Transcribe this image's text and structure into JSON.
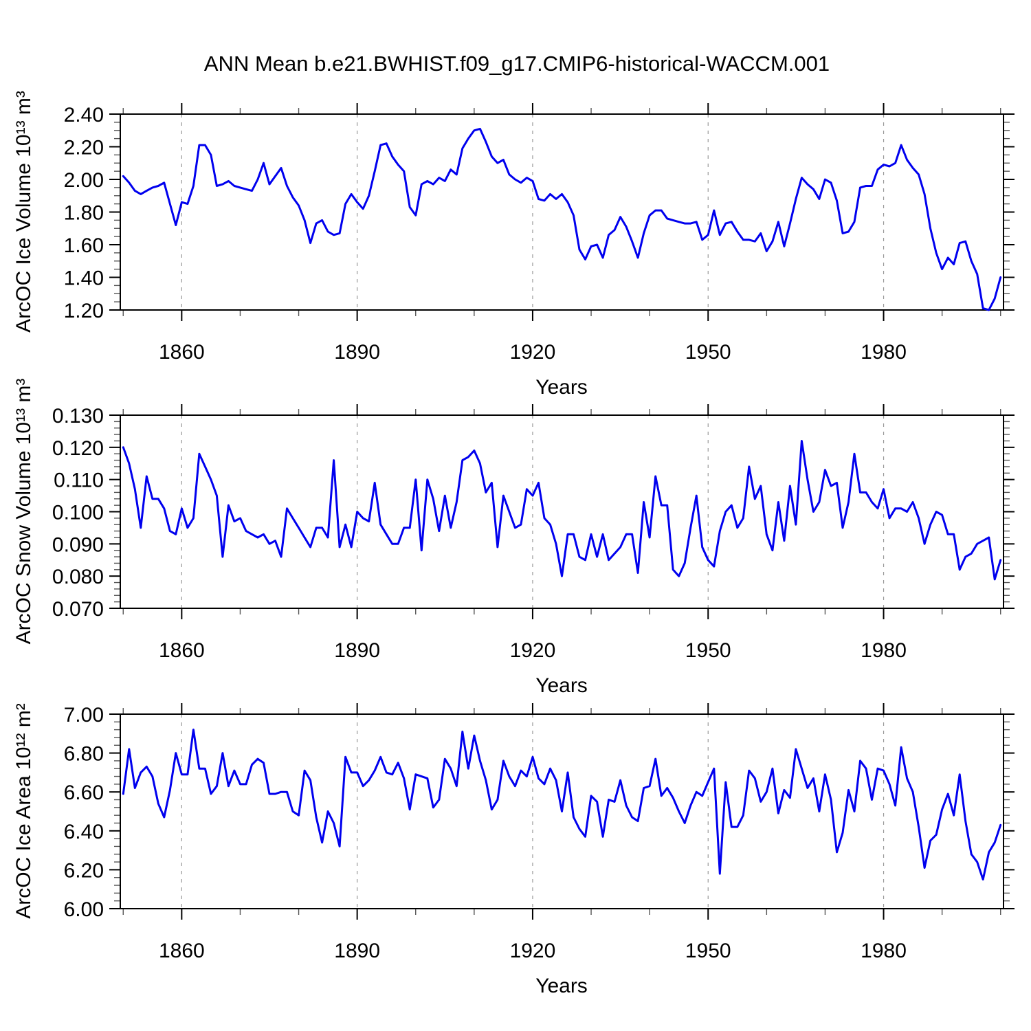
{
  "title": "ANN Mean b.e21.BWHIST.f09_g17.CMIP6-historical-WACCM.001",
  "line_color": "#0000ee",
  "chart_data": [
    {
      "type": "line",
      "ylabel": "ArcOC Ice Volume 10¹³ m³",
      "xlabel": "Years",
      "x_start": 1850,
      "x_end": 2000,
      "xlim": [
        1849.5,
        2000.5
      ],
      "ylim": [
        1.2,
        2.4
      ],
      "y_ticks": [
        2.4,
        2.2,
        2.0,
        1.8,
        1.6,
        1.4,
        1.2
      ],
      "y_tick_labels": [
        "2.40",
        "2.20",
        "2.00",
        "1.80",
        "1.60",
        "1.40",
        "1.20"
      ],
      "y_minor_step": 0.05,
      "x_ticks": [
        1860,
        1890,
        1920,
        1950,
        1980
      ],
      "x_minor_step": 10,
      "grid": "vertical-dashed",
      "legend": "none",
      "values": [
        2.02,
        1.98,
        1.93,
        1.91,
        1.93,
        1.95,
        1.96,
        1.98,
        1.85,
        1.72,
        1.86,
        1.85,
        1.96,
        2.21,
        2.21,
        2.15,
        1.96,
        1.97,
        1.99,
        1.96,
        1.95,
        1.94,
        1.93,
        2.0,
        2.1,
        1.97,
        2.02,
        2.07,
        1.96,
        1.89,
        1.84,
        1.75,
        1.61,
        1.73,
        1.75,
        1.68,
        1.66,
        1.67,
        1.85,
        1.91,
        1.86,
        1.82,
        1.9,
        2.05,
        2.21,
        2.22,
        2.14,
        2.09,
        2.05,
        1.83,
        1.78,
        1.97,
        1.99,
        1.97,
        2.01,
        1.99,
        2.06,
        2.03,
        2.19,
        2.25,
        2.3,
        2.31,
        2.23,
        2.14,
        2.1,
        2.12,
        2.03,
        2.0,
        1.98,
        2.01,
        1.99,
        1.88,
        1.87,
        1.91,
        1.88,
        1.91,
        1.86,
        1.78,
        1.57,
        1.51,
        1.59,
        1.6,
        1.52,
        1.66,
        1.69,
        1.77,
        1.71,
        1.62,
        1.52,
        1.67,
        1.78,
        1.81,
        1.81,
        1.76,
        1.75,
        1.74,
        1.73,
        1.73,
        1.74,
        1.63,
        1.66,
        1.81,
        1.66,
        1.73,
        1.74,
        1.68,
        1.63,
        1.63,
        1.62,
        1.67,
        1.56,
        1.62,
        1.74,
        1.59,
        1.73,
        1.88,
        2.01,
        1.97,
        1.94,
        1.88,
        2.0,
        1.98,
        1.87,
        1.67,
        1.68,
        1.74,
        1.95,
        1.96,
        1.96,
        2.06,
        2.09,
        2.08,
        2.1,
        2.21,
        2.12,
        2.07,
        2.03,
        1.91,
        1.7,
        1.55,
        1.45,
        1.52,
        1.48,
        1.61,
        1.62,
        1.5,
        1.42,
        1.21,
        1.2,
        1.27,
        1.4
      ]
    },
    {
      "type": "line",
      "ylabel": "ArcOC Snow Volume 10¹³ m³",
      "xlabel": "Years",
      "x_start": 1850,
      "x_end": 2000,
      "xlim": [
        1849.5,
        2000.5
      ],
      "ylim": [
        0.07,
        0.13
      ],
      "y_ticks": [
        0.13,
        0.12,
        0.11,
        0.1,
        0.09,
        0.08,
        0.07
      ],
      "y_tick_labels": [
        "0.130",
        "0.120",
        "0.110",
        "0.100",
        "0.090",
        "0.080",
        "0.070"
      ],
      "y_minor_step": 0.002,
      "x_ticks": [
        1860,
        1890,
        1920,
        1950,
        1980
      ],
      "x_minor_step": 10,
      "grid": "vertical-dashed",
      "legend": "none",
      "values": [
        0.12,
        0.115,
        0.107,
        0.095,
        0.111,
        0.104,
        0.104,
        0.101,
        0.094,
        0.093,
        0.101,
        0.095,
        0.098,
        0.118,
        0.114,
        0.11,
        0.105,
        0.086,
        0.102,
        0.097,
        0.098,
        0.094,
        0.093,
        0.092,
        0.093,
        0.09,
        0.091,
        0.086,
        0.101,
        0.098,
        0.095,
        0.092,
        0.089,
        0.095,
        0.095,
        0.092,
        0.116,
        0.089,
        0.096,
        0.089,
        0.1,
        0.098,
        0.097,
        0.109,
        0.096,
        0.093,
        0.09,
        0.09,
        0.095,
        0.095,
        0.11,
        0.088,
        0.11,
        0.104,
        0.094,
        0.105,
        0.095,
        0.103,
        0.116,
        0.117,
        0.119,
        0.115,
        0.106,
        0.109,
        0.089,
        0.105,
        0.1,
        0.095,
        0.096,
        0.107,
        0.105,
        0.109,
        0.098,
        0.096,
        0.09,
        0.08,
        0.093,
        0.093,
        0.086,
        0.085,
        0.093,
        0.086,
        0.093,
        0.085,
        0.087,
        0.089,
        0.093,
        0.093,
        0.081,
        0.103,
        0.092,
        0.111,
        0.102,
        0.102,
        0.082,
        0.08,
        0.084,
        0.095,
        0.105,
        0.089,
        0.085,
        0.083,
        0.094,
        0.1,
        0.102,
        0.095,
        0.098,
        0.114,
        0.104,
        0.108,
        0.093,
        0.088,
        0.103,
        0.091,
        0.108,
        0.096,
        0.122,
        0.11,
        0.1,
        0.103,
        0.113,
        0.108,
        0.109,
        0.095,
        0.103,
        0.118,
        0.106,
        0.106,
        0.103,
        0.101,
        0.107,
        0.098,
        0.101,
        0.101,
        0.1,
        0.103,
        0.098,
        0.09,
        0.096,
        0.1,
        0.099,
        0.093,
        0.093,
        0.082,
        0.086,
        0.087,
        0.09,
        0.091,
        0.092,
        0.079,
        0.085
      ]
    },
    {
      "type": "line",
      "ylabel": "ArcOC Ice Area 10¹² m²",
      "xlabel": "Years",
      "x_start": 1850,
      "x_end": 2000,
      "xlim": [
        1849.5,
        2000.5
      ],
      "ylim": [
        6.0,
        7.0
      ],
      "y_ticks": [
        7.0,
        6.8,
        6.6,
        6.4,
        6.2,
        6.0
      ],
      "y_tick_labels": [
        "7.00",
        "6.80",
        "6.60",
        "6.40",
        "6.20",
        "6.00"
      ],
      "y_minor_step": 0.04,
      "x_ticks": [
        1860,
        1890,
        1920,
        1950,
        1980
      ],
      "x_minor_step": 10,
      "grid": "vertical-dashed",
      "legend": "none",
      "values": [
        6.59,
        6.82,
        6.62,
        6.7,
        6.73,
        6.68,
        6.54,
        6.47,
        6.61,
        6.8,
        6.69,
        6.69,
        6.92,
        6.72,
        6.72,
        6.59,
        6.63,
        6.8,
        6.63,
        6.71,
        6.64,
        6.64,
        6.74,
        6.77,
        6.75,
        6.59,
        6.59,
        6.6,
        6.6,
        6.5,
        6.48,
        6.71,
        6.66,
        6.47,
        6.34,
        6.5,
        6.44,
        6.32,
        6.78,
        6.7,
        6.7,
        6.63,
        6.66,
        6.71,
        6.78,
        6.7,
        6.69,
        6.75,
        6.67,
        6.51,
        6.69,
        6.68,
        6.67,
        6.52,
        6.56,
        6.77,
        6.72,
        6.63,
        6.91,
        6.72,
        6.89,
        6.76,
        6.66,
        6.51,
        6.56,
        6.76,
        6.68,
        6.63,
        6.71,
        6.68,
        6.78,
        6.67,
        6.64,
        6.72,
        6.66,
        6.5,
        6.7,
        6.47,
        6.41,
        6.37,
        6.58,
        6.55,
        6.37,
        6.56,
        6.55,
        6.66,
        6.53,
        6.47,
        6.45,
        6.62,
        6.63,
        6.77,
        6.58,
        6.62,
        6.57,
        6.5,
        6.44,
        6.53,
        6.6,
        6.58,
        6.65,
        6.72,
        6.18,
        6.65,
        6.42,
        6.42,
        6.48,
        6.71,
        6.67,
        6.55,
        6.6,
        6.72,
        6.49,
        6.61,
        6.57,
        6.82,
        6.72,
        6.62,
        6.67,
        6.5,
        6.69,
        6.56,
        6.29,
        6.39,
        6.61,
        6.5,
        6.76,
        6.72,
        6.56,
        6.72,
        6.71,
        6.64,
        6.53,
        6.83,
        6.67,
        6.6,
        6.42,
        6.21,
        6.35,
        6.38,
        6.51,
        6.59,
        6.48,
        6.69,
        6.45,
        6.28,
        6.24,
        6.15,
        6.29,
        6.34,
        6.43
      ]
    }
  ]
}
